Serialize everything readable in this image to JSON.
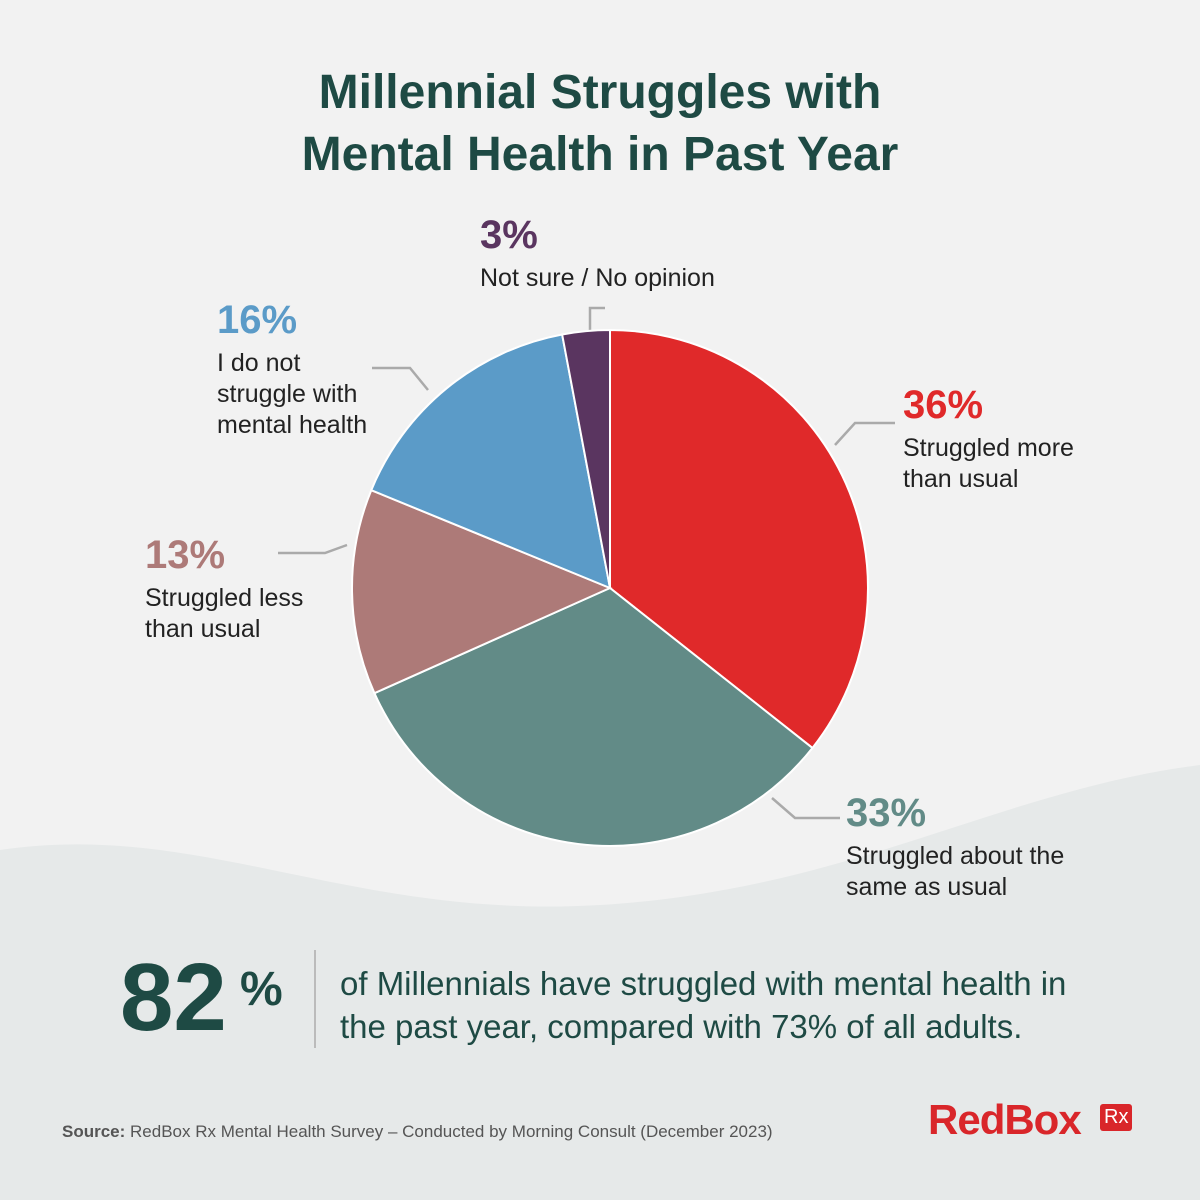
{
  "chart_data": {
    "type": "pie",
    "title_lines": [
      "Millennial Struggles with",
      "Mental Health in Past Year"
    ],
    "categories": [
      "Struggled more than usual",
      "Struggled about the same as usual",
      "Struggled less than usual",
      "I do not struggle with mental health",
      "Not sure / No opinion"
    ],
    "values": [
      36,
      33,
      13,
      16,
      3
    ],
    "value_labels": [
      "36%",
      "33%",
      "13%",
      "16%",
      "3%"
    ],
    "colors": [
      "#e0292a",
      "#628b87",
      "#ad7a78",
      "#5b9bc8",
      "#5a3560"
    ]
  },
  "callout": {
    "number": "82",
    "unit": "%",
    "text": "of Millennials have struggled with mental health in the past year, compared with 73% of all adults."
  },
  "footer": {
    "source_label": "Source:",
    "source_text": "RedBox Rx Mental Health Survey – Conducted by Morning Consult (December 2023)",
    "brand": "RedBox",
    "brand_badge": "Rx"
  }
}
